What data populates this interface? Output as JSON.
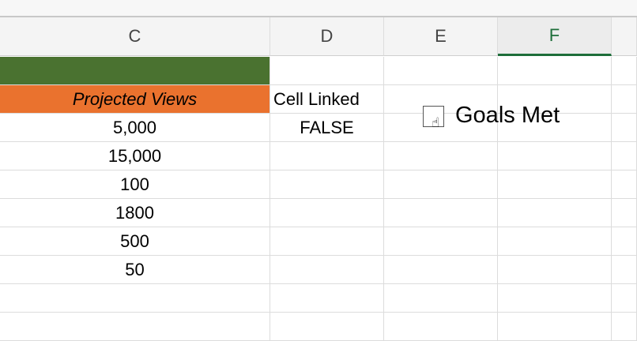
{
  "columns": [
    {
      "label": "C",
      "selected": false
    },
    {
      "label": "D",
      "selected": false
    },
    {
      "label": "E",
      "selected": false
    },
    {
      "label": "F",
      "selected": true
    },
    {
      "label": "",
      "selected": false
    }
  ],
  "header_row": {
    "projected_views": "Projected Views",
    "cell_linked": "Cell Linked"
  },
  "linked_value": "FALSE",
  "views": [
    "5,000",
    "15,000",
    "100",
    "1800",
    "500",
    "50"
  ],
  "checkbox": {
    "label": "Goals Met",
    "checked": false
  },
  "colors": {
    "green_fill": "#4a7230",
    "orange_fill": "#ea722e",
    "selected_header": "#1e6e3a"
  }
}
